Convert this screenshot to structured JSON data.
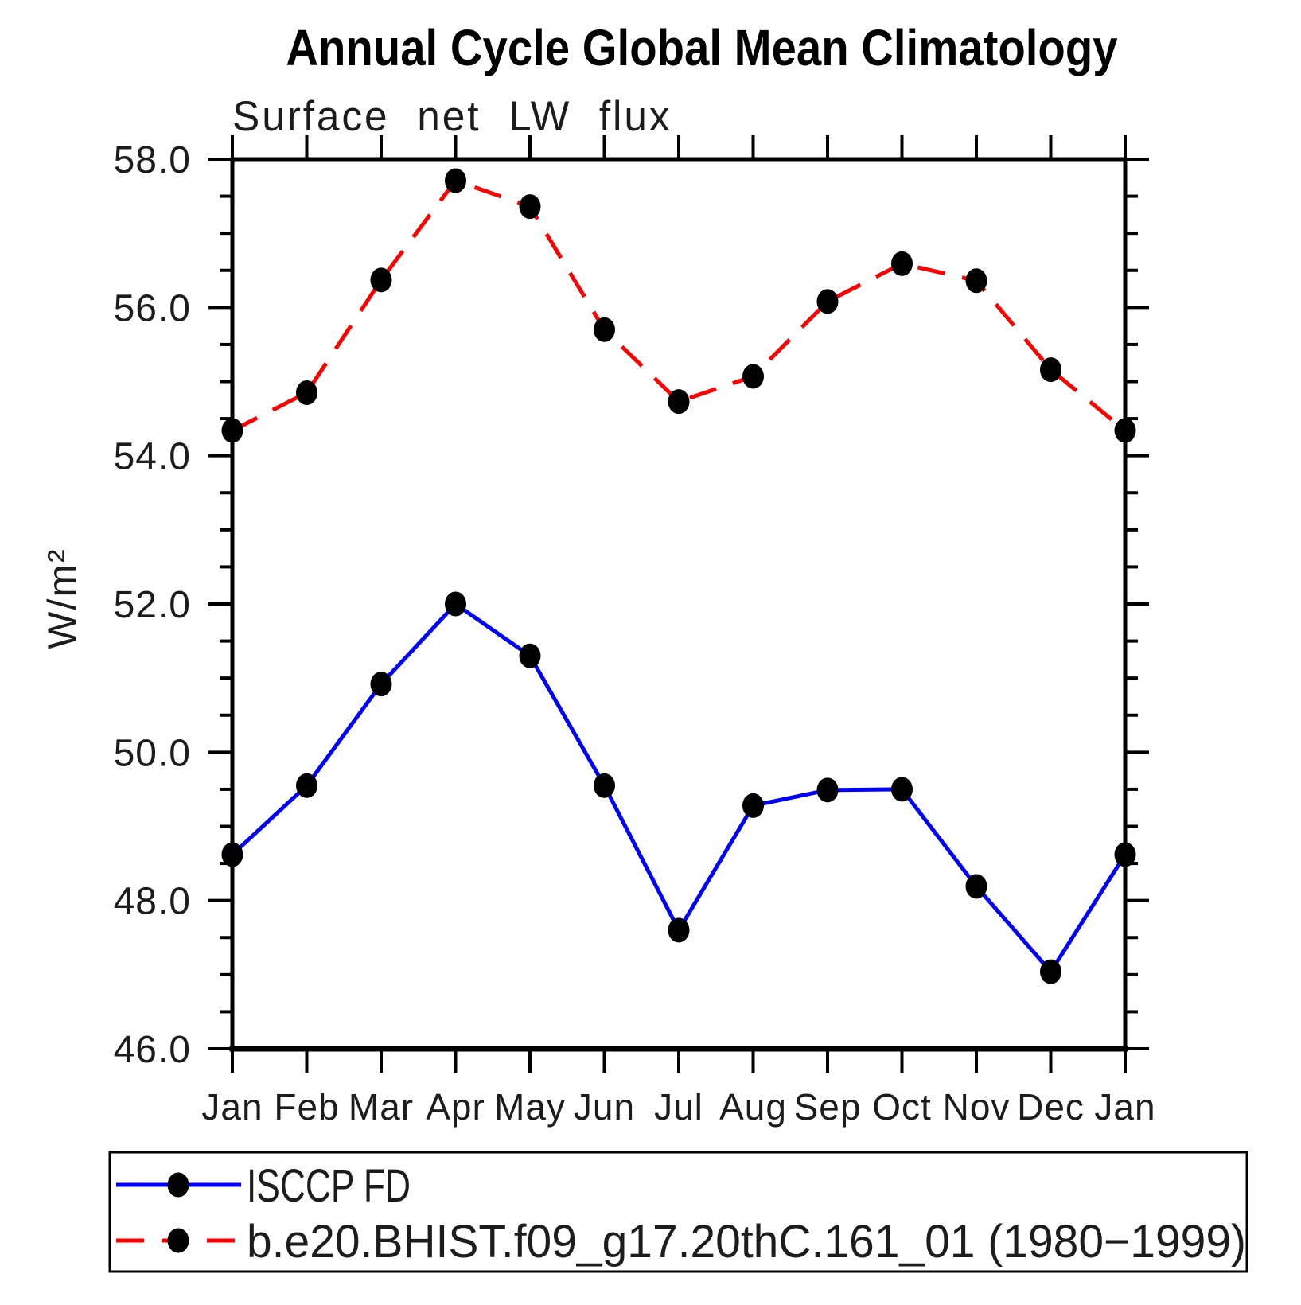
{
  "title": "Annual Cycle Global Mean Climatology",
  "subtitle": "Surface net LW flux",
  "ylabel": "W/m²",
  "chart_data": {
    "type": "line",
    "x_categories": [
      "Jan",
      "Feb",
      "Mar",
      "Apr",
      "May",
      "Jun",
      "Jul",
      "Aug",
      "Sep",
      "Oct",
      "Nov",
      "Dec",
      "Jan"
    ],
    "xlabel": "",
    "ylabel": "W/m²",
    "ylim": [
      46.0,
      58.0
    ],
    "ytick_step": 2.0,
    "ytick_labels": [
      "46.0",
      "48.0",
      "50.0",
      "52.0",
      "54.0",
      "56.0",
      "58.0"
    ],
    "minor_tick_step": 0.5,
    "grid": false,
    "legend_position": "bottom-left-box",
    "series": [
      {
        "name": "ISCCP FD",
        "color": "#0000ff",
        "line_style": "solid",
        "marker": "filled-circle",
        "marker_color": "#000000",
        "values": [
          48.62,
          49.55,
          50.92,
          52.0,
          51.3,
          49.55,
          47.6,
          49.28,
          49.49,
          49.5,
          48.19,
          47.04,
          48.62
        ]
      },
      {
        "name": "b.e20.BHIST.f09_g17.20thC.161_01 (1980−1999)",
        "color": "#ff0000",
        "line_style": "dashed",
        "marker": "filled-circle",
        "marker_color": "#000000",
        "values": [
          54.34,
          54.85,
          56.37,
          57.71,
          57.36,
          55.7,
          54.73,
          55.07,
          56.08,
          56.59,
          56.36,
          55.16,
          54.34
        ]
      }
    ]
  },
  "colors": {
    "axis": "#000000",
    "text": "#1c1c1c",
    "background": "#ffffff",
    "series_blue": "#0000ff",
    "series_red": "#ff0000",
    "marker": "#000000"
  }
}
